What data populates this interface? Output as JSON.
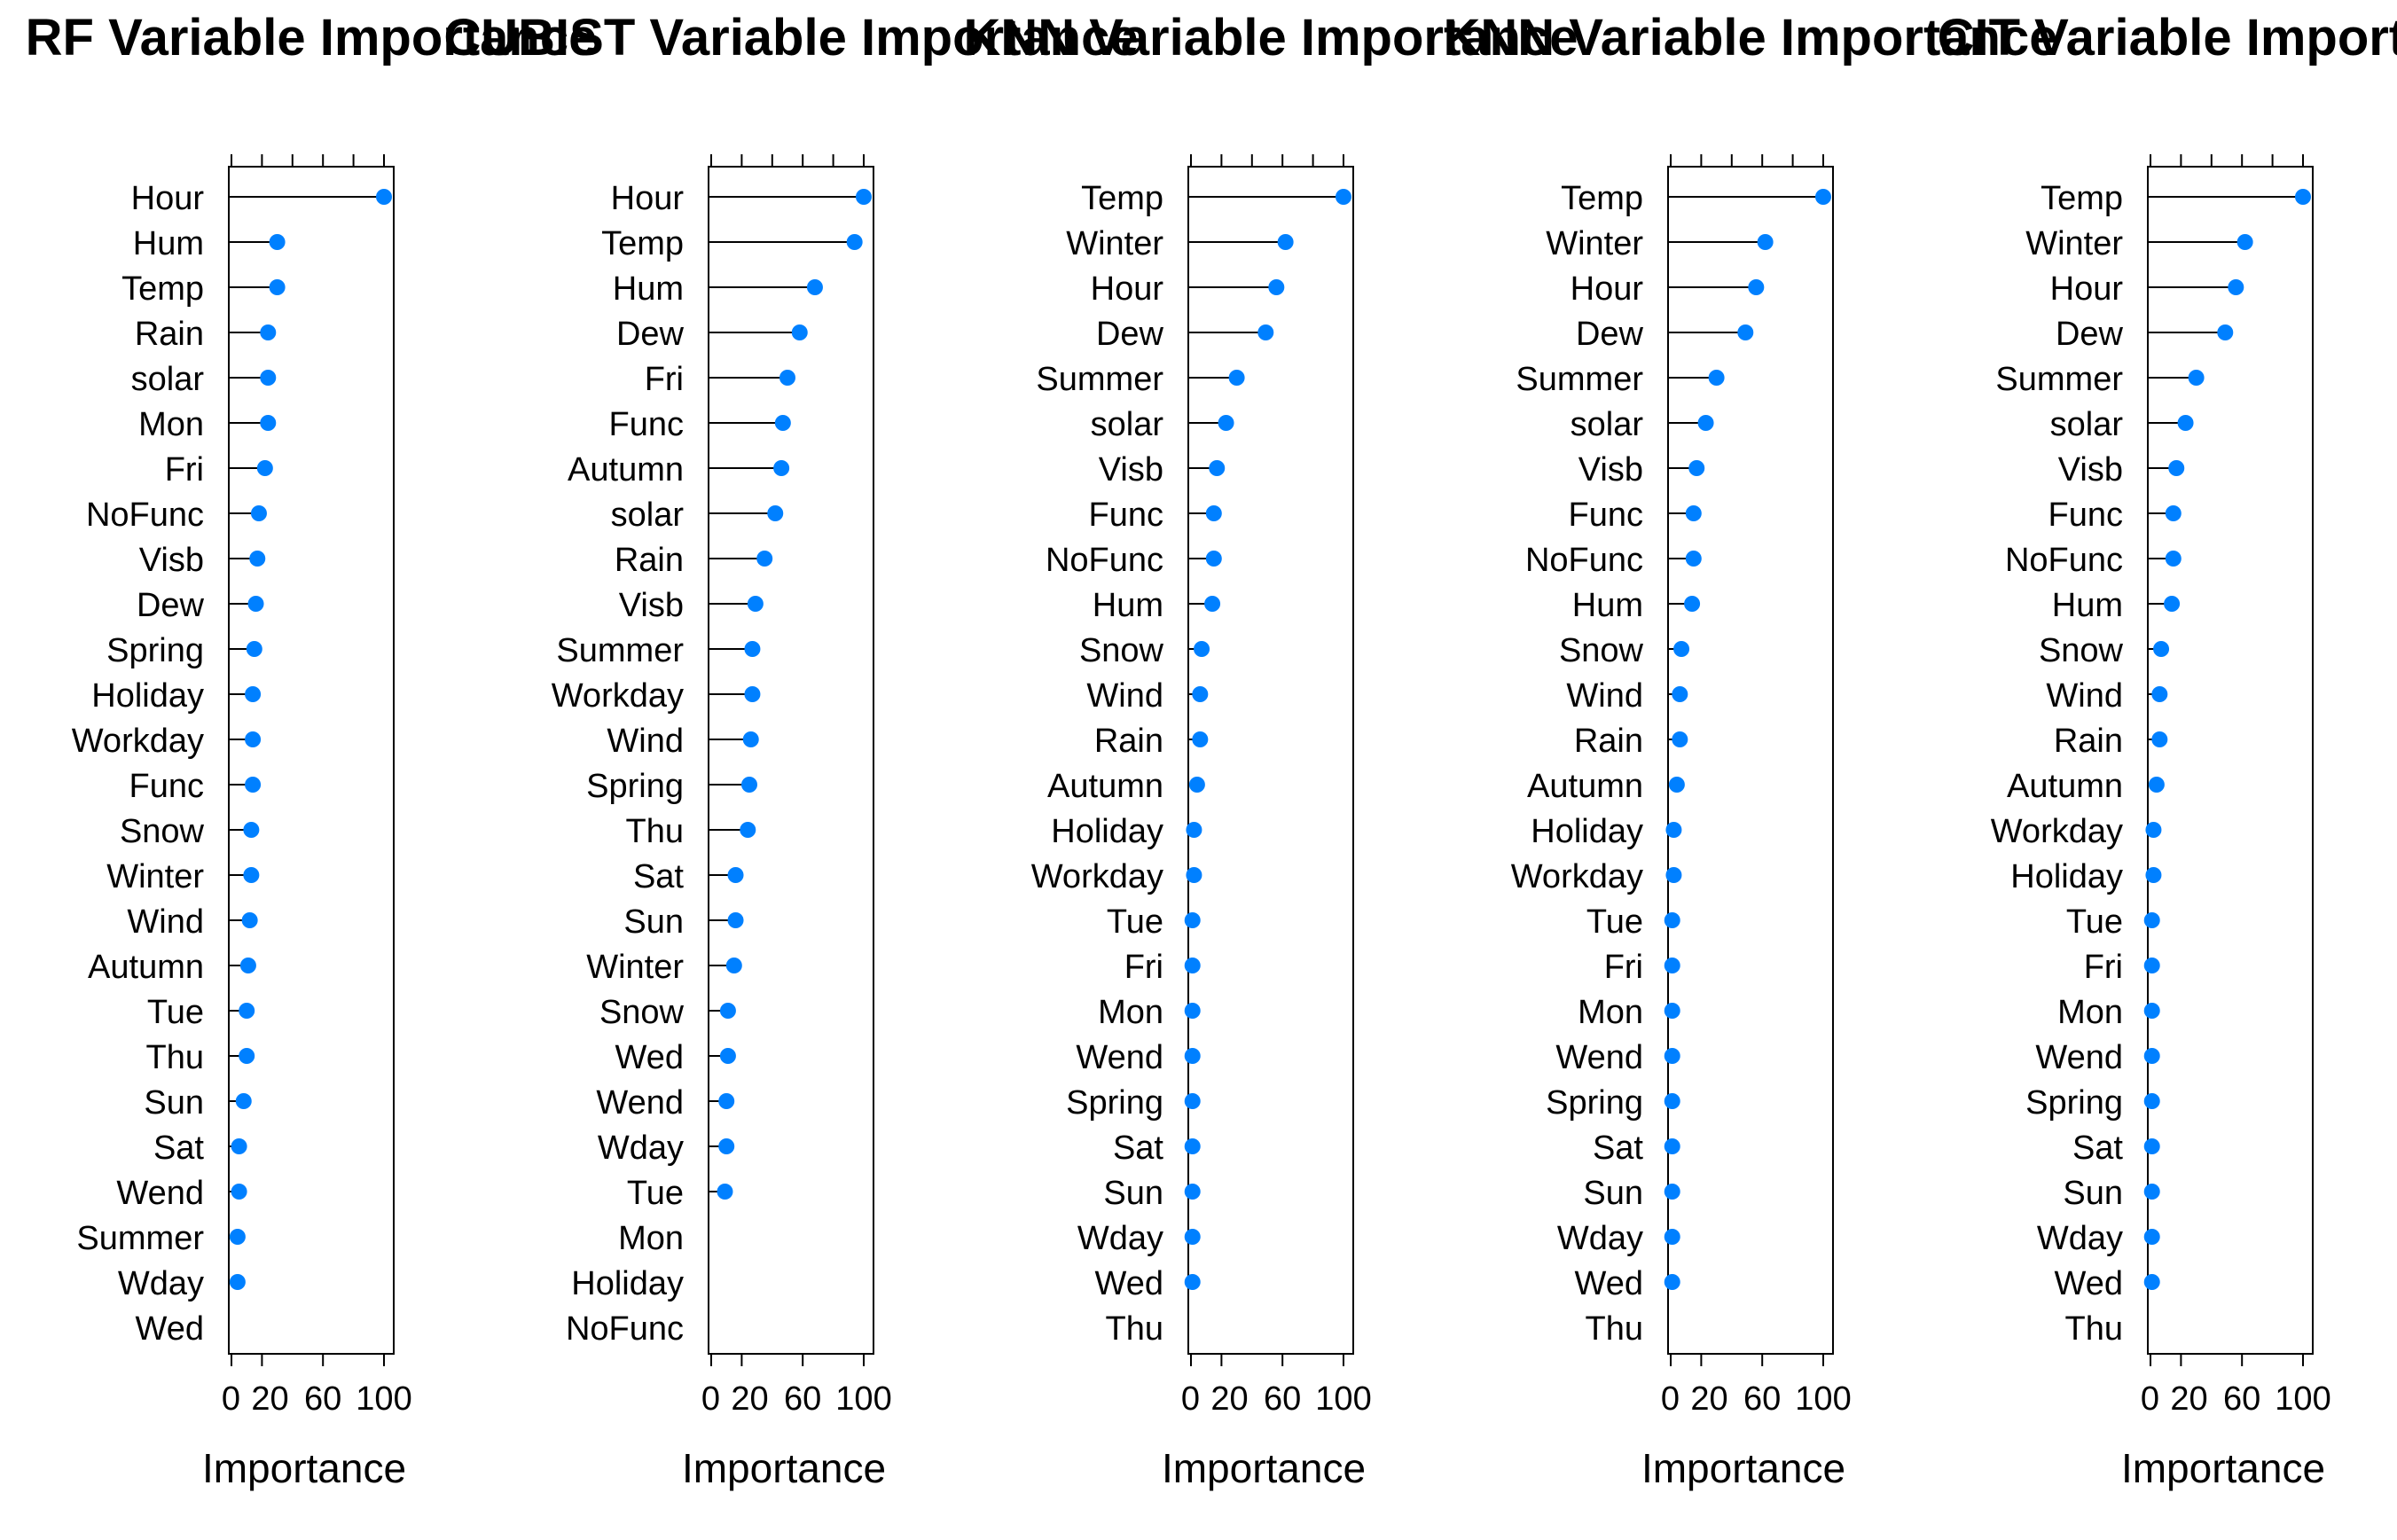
{
  "chart_data": [
    {
      "type": "dot",
      "title": "RF Variable Importance",
      "xlabel": "Importance",
      "x_ticks": [
        "0",
        "20",
        "60",
        "100"
      ],
      "xlim": [
        0,
        100
      ],
      "point_color": "#0080FF",
      "labels": [
        "Hour",
        "Hum",
        "Temp",
        "Rain",
        "solar",
        "Mon",
        "Fri",
        "NoFunc",
        "Visb",
        "Dew",
        "Spring",
        "Holiday",
        "Workday",
        "Func",
        "Snow",
        "Winter",
        "Wind",
        "Autumn",
        "Tue",
        "Thu",
        "Sun",
        "Sat",
        "Wend",
        "Summer",
        "Wday",
        "Wed"
      ],
      "values": [
        100,
        30,
        30,
        24,
        24,
        24,
        22,
        18,
        17,
        16,
        15,
        14,
        14,
        14,
        13,
        13,
        12,
        11,
        10,
        10,
        8,
        5,
        5,
        4,
        4,
        null
      ]
    },
    {
      "type": "dot",
      "title": "CUBIST Variable Importance",
      "xlabel": "Importance",
      "x_ticks": [
        "0",
        "20",
        "60",
        "100"
      ],
      "xlim": [
        0,
        100
      ],
      "point_color": "#0080FF",
      "labels": [
        "Hour",
        "Temp",
        "Hum",
        "Dew",
        "Fri",
        "Func",
        "Autumn",
        "solar",
        "Rain",
        "Visb",
        "Summer",
        "Workday",
        "Wind",
        "Spring",
        "Thu",
        "Sat",
        "Sun",
        "Winter",
        "Snow",
        "Wed",
        "Wend",
        "Wday",
        "Tue",
        "Mon",
        "Holiday",
        "NoFunc"
      ],
      "values": [
        100,
        94,
        68,
        58,
        50,
        47,
        46,
        42,
        35,
        29,
        27,
        27,
        26,
        25,
        24,
        16,
        16,
        15,
        11,
        11,
        10,
        10,
        9,
        null,
        null,
        null
      ]
    },
    {
      "type": "dot",
      "title": "KNN Variable Importance",
      "xlabel": "Importance",
      "x_ticks": [
        "0",
        "20",
        "60",
        "100"
      ],
      "xlim": [
        0,
        100
      ],
      "point_color": "#0080FF",
      "labels": [
        "Temp",
        "Winter",
        "Hour",
        "Dew",
        "Summer",
        "solar",
        "Visb",
        "Func",
        "NoFunc",
        "Hum",
        "Snow",
        "Wind",
        "Rain",
        "Autumn",
        "Holiday",
        "Workday",
        "Tue",
        "Fri",
        "Mon",
        "Wend",
        "Spring",
        "Sat",
        "Sun",
        "Wday",
        "Wed",
        "Thu"
      ],
      "values": [
        100,
        62,
        56,
        49,
        30,
        23,
        17,
        15,
        15,
        14,
        7,
        6,
        6,
        4,
        2,
        2,
        1,
        1,
        1,
        1,
        1,
        1,
        1,
        1,
        1,
        null
      ]
    },
    {
      "type": "dot",
      "title": "KNN Variable Importance",
      "xlabel": "Importance",
      "x_ticks": [
        "0",
        "20",
        "60",
        "100"
      ],
      "xlim": [
        0,
        100
      ],
      "point_color": "#0080FF",
      "labels": [
        "Temp",
        "Winter",
        "Hour",
        "Dew",
        "Summer",
        "solar",
        "Visb",
        "Func",
        "NoFunc",
        "Hum",
        "Snow",
        "Wind",
        "Rain",
        "Autumn",
        "Holiday",
        "Workday",
        "Tue",
        "Fri",
        "Mon",
        "Wend",
        "Spring",
        "Sat",
        "Sun",
        "Wday",
        "Wed",
        "Thu"
      ],
      "values": [
        100,
        62,
        56,
        49,
        30,
        23,
        17,
        15,
        15,
        14,
        7,
        6,
        6,
        4,
        2,
        2,
        1,
        1,
        1,
        1,
        1,
        1,
        1,
        1,
        1,
        null
      ]
    },
    {
      "type": "dot",
      "title": "CIT Variable Importance",
      "xlabel": "Importance",
      "x_ticks": [
        "0",
        "20",
        "60",
        "100"
      ],
      "xlim": [
        0,
        100
      ],
      "point_color": "#0080FF",
      "labels": [
        "Temp",
        "Winter",
        "Hour",
        "Dew",
        "Summer",
        "solar",
        "Visb",
        "Func",
        "NoFunc",
        "Hum",
        "Snow",
        "Wind",
        "Rain",
        "Autumn",
        "Workday",
        "Holiday",
        "Tue",
        "Fri",
        "Mon",
        "Wend",
        "Spring",
        "Sat",
        "Sun",
        "Wday",
        "Wed",
        "Thu"
      ],
      "values": [
        100,
        62,
        56,
        49,
        30,
        23,
        17,
        15,
        15,
        14,
        7,
        6,
        6,
        4,
        2,
        2,
        1,
        1,
        1,
        1,
        1,
        1,
        1,
        1,
        1,
        null
      ]
    }
  ]
}
